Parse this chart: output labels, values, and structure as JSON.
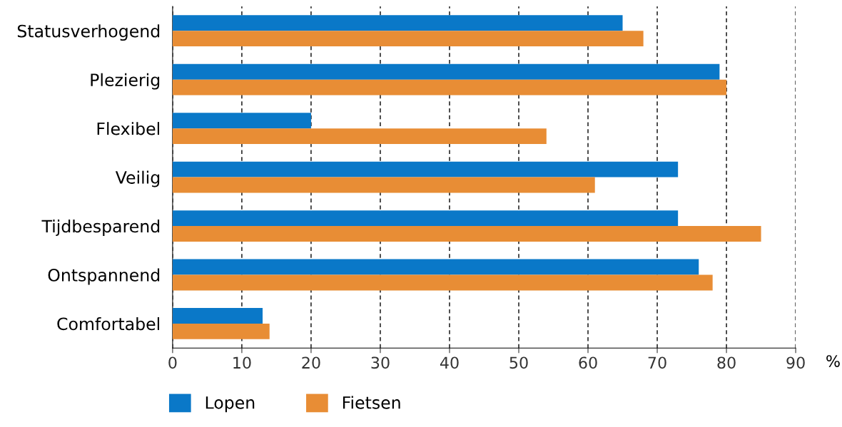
{
  "chart_data": {
    "type": "bar",
    "orientation": "horizontal",
    "xlabel": "%",
    "categories": [
      "Statusverhogend",
      "Plezierig",
      "Flexibel",
      "Veilig",
      "Tijdbesparend",
      "Ontspannend",
      "Comfortabel"
    ],
    "series": [
      {
        "name": "Lopen",
        "color": "#0a78c8",
        "values": [
          65,
          79,
          20,
          73,
          73,
          76,
          13
        ]
      },
      {
        "name": "Fietsen",
        "color": "#e88d35",
        "values": [
          68,
          80,
          54,
          61,
          85,
          78,
          14
        ]
      }
    ],
    "xlim": [
      0,
      90
    ],
    "xticks": [
      0,
      10,
      20,
      30,
      40,
      50,
      60,
      70,
      80,
      90
    ],
    "grid": "x",
    "legend": "bottom"
  }
}
